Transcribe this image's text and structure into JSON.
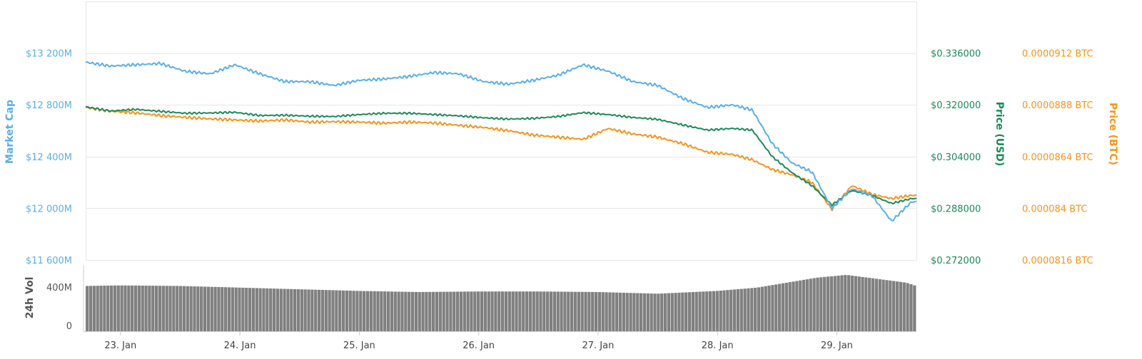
{
  "chart_data": {
    "type": "line",
    "colors": {
      "market_cap": "#5aaee8",
      "price_usd": "#1b8a5a",
      "price_btc": "#f7931a",
      "volume": "#808080",
      "grid": "#e6e6e6"
    },
    "grid": true,
    "x_axis": {
      "start": "2018-01-22T17:00",
      "end": "2018-01-29T16:00",
      "ticks": [
        {
          "label": "23. Jan",
          "t": "2018-01-23T00:00"
        },
        {
          "label": "24. Jan",
          "t": "2018-01-24T00:00"
        },
        {
          "label": "25. Jan",
          "t": "2018-01-25T00:00"
        },
        {
          "label": "26. Jan",
          "t": "2018-01-26T00:00"
        },
        {
          "label": "27. Jan",
          "t": "2018-01-27T00:00"
        },
        {
          "label": "28. Jan",
          "t": "2018-01-28T00:00"
        },
        {
          "label": "29. Jan",
          "t": "2018-01-29T00:00"
        }
      ]
    },
    "market_cap_axis": {
      "title": "Market Cap",
      "range": [
        11600,
        13600
      ],
      "ticks": [
        {
          "label": "$11 600M",
          "v": 11600
        },
        {
          "label": "$12 000M",
          "v": 12000
        },
        {
          "label": "$12 400M",
          "v": 12400
        },
        {
          "label": "$12 800M",
          "v": 12800
        },
        {
          "label": "$13 200M",
          "v": 13200
        }
      ]
    },
    "price_usd_axis": {
      "title": "Price (USD)",
      "range": [
        0.272,
        0.352
      ],
      "ticks": [
        {
          "label": "$0.272000",
          "v": 0.272
        },
        {
          "label": "$0.288000",
          "v": 0.288
        },
        {
          "label": "$0.304000",
          "v": 0.304
        },
        {
          "label": "$0.320000",
          "v": 0.32
        },
        {
          "label": "$0.336000",
          "v": 0.336
        }
      ]
    },
    "price_btc_axis": {
      "title": "Price (BTC)",
      "range": [
        8.16e-05,
        9.36e-05
      ],
      "ticks": [
        {
          "label": "0.0000816 BTC",
          "v": 8.16e-05
        },
        {
          "label": "0.000084 BTC",
          "v": 8.4e-05
        },
        {
          "label": "0.0000864 BTC",
          "v": 8.64e-05
        },
        {
          "label": "0.0000888 BTC",
          "v": 8.88e-05
        },
        {
          "label": "0.0000912 BTC",
          "v": 9.12e-05
        }
      ]
    },
    "volume_axis": {
      "title": "24h Vol",
      "range": [
        0,
        600
      ],
      "ticks": [
        {
          "label": "0",
          "v": 0
        },
        {
          "label": "400M",
          "v": 400
        }
      ]
    },
    "series": [
      {
        "key": "market_cap",
        "unit": "M USD",
        "points": [
          [
            "2018-01-22T17:00",
            13130
          ],
          [
            "2018-01-22T22:00",
            13100
          ],
          [
            "2018-01-23T03:00",
            13110
          ],
          [
            "2018-01-23T08:00",
            13120
          ],
          [
            "2018-01-23T13:00",
            13060
          ],
          [
            "2018-01-23T18:00",
            13040
          ],
          [
            "2018-01-23T23:00",
            13110
          ],
          [
            "2018-01-24T04:00",
            13040
          ],
          [
            "2018-01-24T09:00",
            12980
          ],
          [
            "2018-01-24T14:00",
            12980
          ],
          [
            "2018-01-24T19:00",
            12950
          ],
          [
            "2018-01-25T00:00",
            12990
          ],
          [
            "2018-01-25T05:00",
            13000
          ],
          [
            "2018-01-25T10:00",
            13020
          ],
          [
            "2018-01-25T15:00",
            13050
          ],
          [
            "2018-01-25T20:00",
            13040
          ],
          [
            "2018-01-26T01:00",
            12980
          ],
          [
            "2018-01-26T06:00",
            12960
          ],
          [
            "2018-01-26T11:00",
            12990
          ],
          [
            "2018-01-26T16:00",
            13030
          ],
          [
            "2018-01-26T21:00",
            13110
          ],
          [
            "2018-01-27T02:00",
            13060
          ],
          [
            "2018-01-27T07:00",
            12980
          ],
          [
            "2018-01-27T12:00",
            12950
          ],
          [
            "2018-01-27T17:00",
            12850
          ],
          [
            "2018-01-27T22:00",
            12780
          ],
          [
            "2018-01-28T03:00",
            12800
          ],
          [
            "2018-01-28T07:00",
            12760
          ],
          [
            "2018-01-28T11:00",
            12500
          ],
          [
            "2018-01-28T15:00",
            12350
          ],
          [
            "2018-01-28T19:00",
            12280
          ],
          [
            "2018-01-28T23:00",
            12000
          ],
          [
            "2018-01-29T03:00",
            12150
          ],
          [
            "2018-01-29T07:00",
            12100
          ],
          [
            "2018-01-29T11:00",
            11900
          ],
          [
            "2018-01-29T15:00",
            12050
          ]
        ]
      },
      {
        "key": "price_usd",
        "unit": "USD",
        "points": [
          [
            "2018-01-22T17:00",
            0.3194
          ],
          [
            "2018-01-22T22:00",
            0.3181
          ],
          [
            "2018-01-23T03:00",
            0.3186
          ],
          [
            "2018-01-23T08:00",
            0.318
          ],
          [
            "2018-01-23T13:00",
            0.3174
          ],
          [
            "2018-01-23T18:00",
            0.3175
          ],
          [
            "2018-01-23T23:00",
            0.3177
          ],
          [
            "2018-01-24T04:00",
            0.3167
          ],
          [
            "2018-01-24T09:00",
            0.3168
          ],
          [
            "2018-01-24T14:00",
            0.3165
          ],
          [
            "2018-01-24T19:00",
            0.3164
          ],
          [
            "2018-01-25T00:00",
            0.317
          ],
          [
            "2018-01-25T05:00",
            0.3174
          ],
          [
            "2018-01-25T10:00",
            0.3174
          ],
          [
            "2018-01-25T15:00",
            0.317
          ],
          [
            "2018-01-25T20:00",
            0.3166
          ],
          [
            "2018-01-26T01:00",
            0.316
          ],
          [
            "2018-01-26T06:00",
            0.3156
          ],
          [
            "2018-01-26T11:00",
            0.3158
          ],
          [
            "2018-01-26T16:00",
            0.3164
          ],
          [
            "2018-01-26T21:00",
            0.3176
          ],
          [
            "2018-01-27T02:00",
            0.317
          ],
          [
            "2018-01-27T07:00",
            0.3161
          ],
          [
            "2018-01-27T12:00",
            0.3155
          ],
          [
            "2018-01-27T17:00",
            0.3138
          ],
          [
            "2018-01-27T22:00",
            0.3122
          ],
          [
            "2018-01-28T03:00",
            0.3127
          ],
          [
            "2018-01-28T07:00",
            0.3122
          ],
          [
            "2018-01-28T11:00",
            0.304
          ],
          [
            "2018-01-28T15:00",
            0.299
          ],
          [
            "2018-01-28T19:00",
            0.295
          ],
          [
            "2018-01-28T23:00",
            0.289
          ],
          [
            "2018-01-29T03:00",
            0.2935
          ],
          [
            "2018-01-29T07:00",
            0.292
          ],
          [
            "2018-01-29T11:00",
            0.2895
          ],
          [
            "2018-01-29T15:00",
            0.291
          ]
        ]
      },
      {
        "key": "price_btc",
        "unit": "BTC",
        "points": [
          [
            "2018-01-22T17:00",
            8.868e-05
          ],
          [
            "2018-01-22T22:00",
            8.85e-05
          ],
          [
            "2018-01-23T03:00",
            8.843e-05
          ],
          [
            "2018-01-23T08:00",
            8.83e-05
          ],
          [
            "2018-01-23T13:00",
            8.822e-05
          ],
          [
            "2018-01-23T18:00",
            8.815e-05
          ],
          [
            "2018-01-23T23:00",
            8.81e-05
          ],
          [
            "2018-01-24T04:00",
            8.805e-05
          ],
          [
            "2018-01-24T09:00",
            8.81e-05
          ],
          [
            "2018-01-24T14:00",
            8.8e-05
          ],
          [
            "2018-01-24T19:00",
            8.802e-05
          ],
          [
            "2018-01-25T00:00",
            8.8e-05
          ],
          [
            "2018-01-25T05:00",
            8.795e-05
          ],
          [
            "2018-01-25T10:00",
            8.8e-05
          ],
          [
            "2018-01-25T15:00",
            8.796e-05
          ],
          [
            "2018-01-25T20:00",
            8.785e-05
          ],
          [
            "2018-01-26T01:00",
            8.775e-05
          ],
          [
            "2018-01-26T06:00",
            8.76e-05
          ],
          [
            "2018-01-26T11:00",
            8.74e-05
          ],
          [
            "2018-01-26T16:00",
            8.73e-05
          ],
          [
            "2018-01-26T21:00",
            8.72e-05
          ],
          [
            "2018-01-27T02:00",
            8.77e-05
          ],
          [
            "2018-01-27T07:00",
            8.745e-05
          ],
          [
            "2018-01-27T12:00",
            8.73e-05
          ],
          [
            "2018-01-27T17:00",
            8.7e-05
          ],
          [
            "2018-01-27T22:00",
            8.66e-05
          ],
          [
            "2018-01-28T03:00",
            8.65e-05
          ],
          [
            "2018-01-28T07:00",
            8.625e-05
          ],
          [
            "2018-01-28T11:00",
            8.58e-05
          ],
          [
            "2018-01-28T15:00",
            8.555e-05
          ],
          [
            "2018-01-28T19:00",
            8.52e-05
          ],
          [
            "2018-01-28T23:00",
            8.395e-05
          ],
          [
            "2018-01-29T03:00",
            8.505e-05
          ],
          [
            "2018-01-29T07:00",
            8.465e-05
          ],
          [
            "2018-01-29T11:00",
            8.445e-05
          ],
          [
            "2018-01-29T15:00",
            8.46e-05
          ]
        ]
      },
      {
        "key": "volume",
        "unit": "M USD",
        "points": [
          [
            "2018-01-22T17:00",
            410
          ],
          [
            "2018-01-23T00:00",
            415
          ],
          [
            "2018-01-23T12:00",
            410
          ],
          [
            "2018-01-24T00:00",
            395
          ],
          [
            "2018-01-24T12:00",
            380
          ],
          [
            "2018-01-25T00:00",
            365
          ],
          [
            "2018-01-25T12:00",
            355
          ],
          [
            "2018-01-26T00:00",
            360
          ],
          [
            "2018-01-26T12:00",
            360
          ],
          [
            "2018-01-27T00:00",
            355
          ],
          [
            "2018-01-27T12:00",
            340
          ],
          [
            "2018-01-28T00:00",
            365
          ],
          [
            "2018-01-28T08:00",
            395
          ],
          [
            "2018-01-28T14:00",
            440
          ],
          [
            "2018-01-28T20:00",
            485
          ],
          [
            "2018-01-29T02:00",
            510
          ],
          [
            "2018-01-29T08:00",
            475
          ],
          [
            "2018-01-29T14:00",
            440
          ],
          [
            "2018-01-29T16:00",
            410
          ]
        ]
      }
    ]
  }
}
